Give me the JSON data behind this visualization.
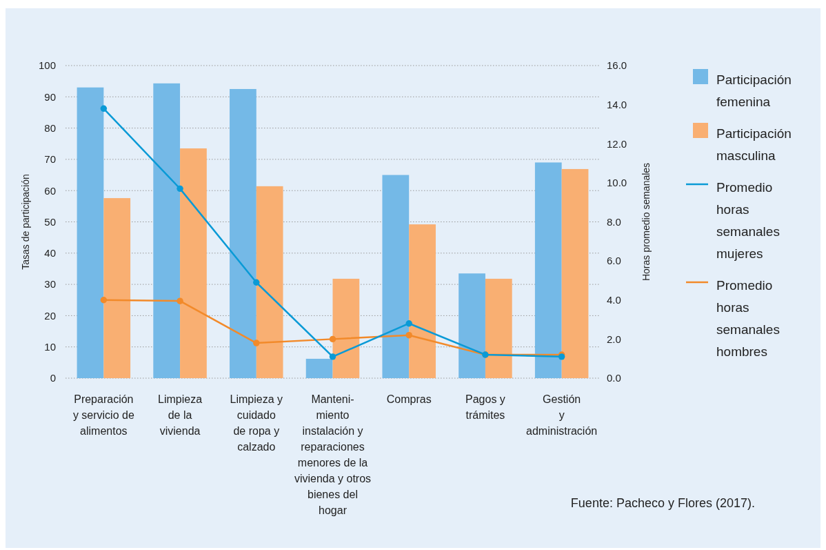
{
  "chart_data": {
    "type": "bar",
    "ylabel": "Tasas de participación",
    "y2label": "Horas promedio semanales",
    "categories": [
      "Preparación\ny servicio de\nalimentos",
      "Limpieza\nde la\nvivienda",
      "Limpieza y\ncuidado\nde ropa y\ncalzado",
      "Manteni-\nmiento\ninstalación y\nreparaciones\nmenores de la\nvivienda y otros\nbienes del\nhogar",
      "Compras",
      "Pagos y\ntrámites",
      "Gestión\ny\nadministración"
    ],
    "series": [
      {
        "name": "Participación femenina",
        "color": "#74b9e7",
        "values": [
          93,
          94.3,
          92.5,
          6.2,
          65,
          33.5,
          69
        ]
      },
      {
        "name": "Participación masculina",
        "color": "#f9af72",
        "values": [
          57.6,
          73.5,
          61.4,
          31.8,
          49.2,
          31.8,
          66.9
        ]
      },
      {
        "name": "Promedio horas semanales mujeres",
        "type": "line",
        "axis": "y2",
        "color": "#0a9ad6",
        "values": [
          13.8,
          9.7,
          4.9,
          1.1,
          2.8,
          1.2,
          1.1
        ]
      },
      {
        "name": "Promedio horas semanales hombres",
        "type": "line",
        "axis": "y2",
        "color": "#f28a2a",
        "values": [
          4.0,
          3.95,
          1.8,
          2.0,
          2.2,
          1.2,
          1.2
        ]
      }
    ],
    "ylim": [
      0,
      100
    ],
    "yticks": [
      0,
      10,
      20,
      30,
      40,
      50,
      60,
      70,
      80,
      90,
      100
    ],
    "y2lim": [
      0,
      16
    ],
    "y2ticks": [
      {
        "value": 0,
        "label": "0.0"
      },
      {
        "value": 2,
        "label": "2.0"
      },
      {
        "value": 4,
        "label": "4.0"
      },
      {
        "value": 6,
        "label": "6.0"
      },
      {
        "value": 8,
        "label": "8.0"
      },
      {
        "value": 10,
        "label": "10.0"
      },
      {
        "value": 12,
        "label": "12.0"
      },
      {
        "value": 14,
        "label": "14.0"
      },
      {
        "value": 16,
        "label": "16.0"
      }
    ],
    "grid": "y",
    "legend": "right",
    "marker": "circle",
    "line_style": "solid",
    "annotations": [
      "Fuente: Pacheco y Flores (2017)."
    ]
  }
}
